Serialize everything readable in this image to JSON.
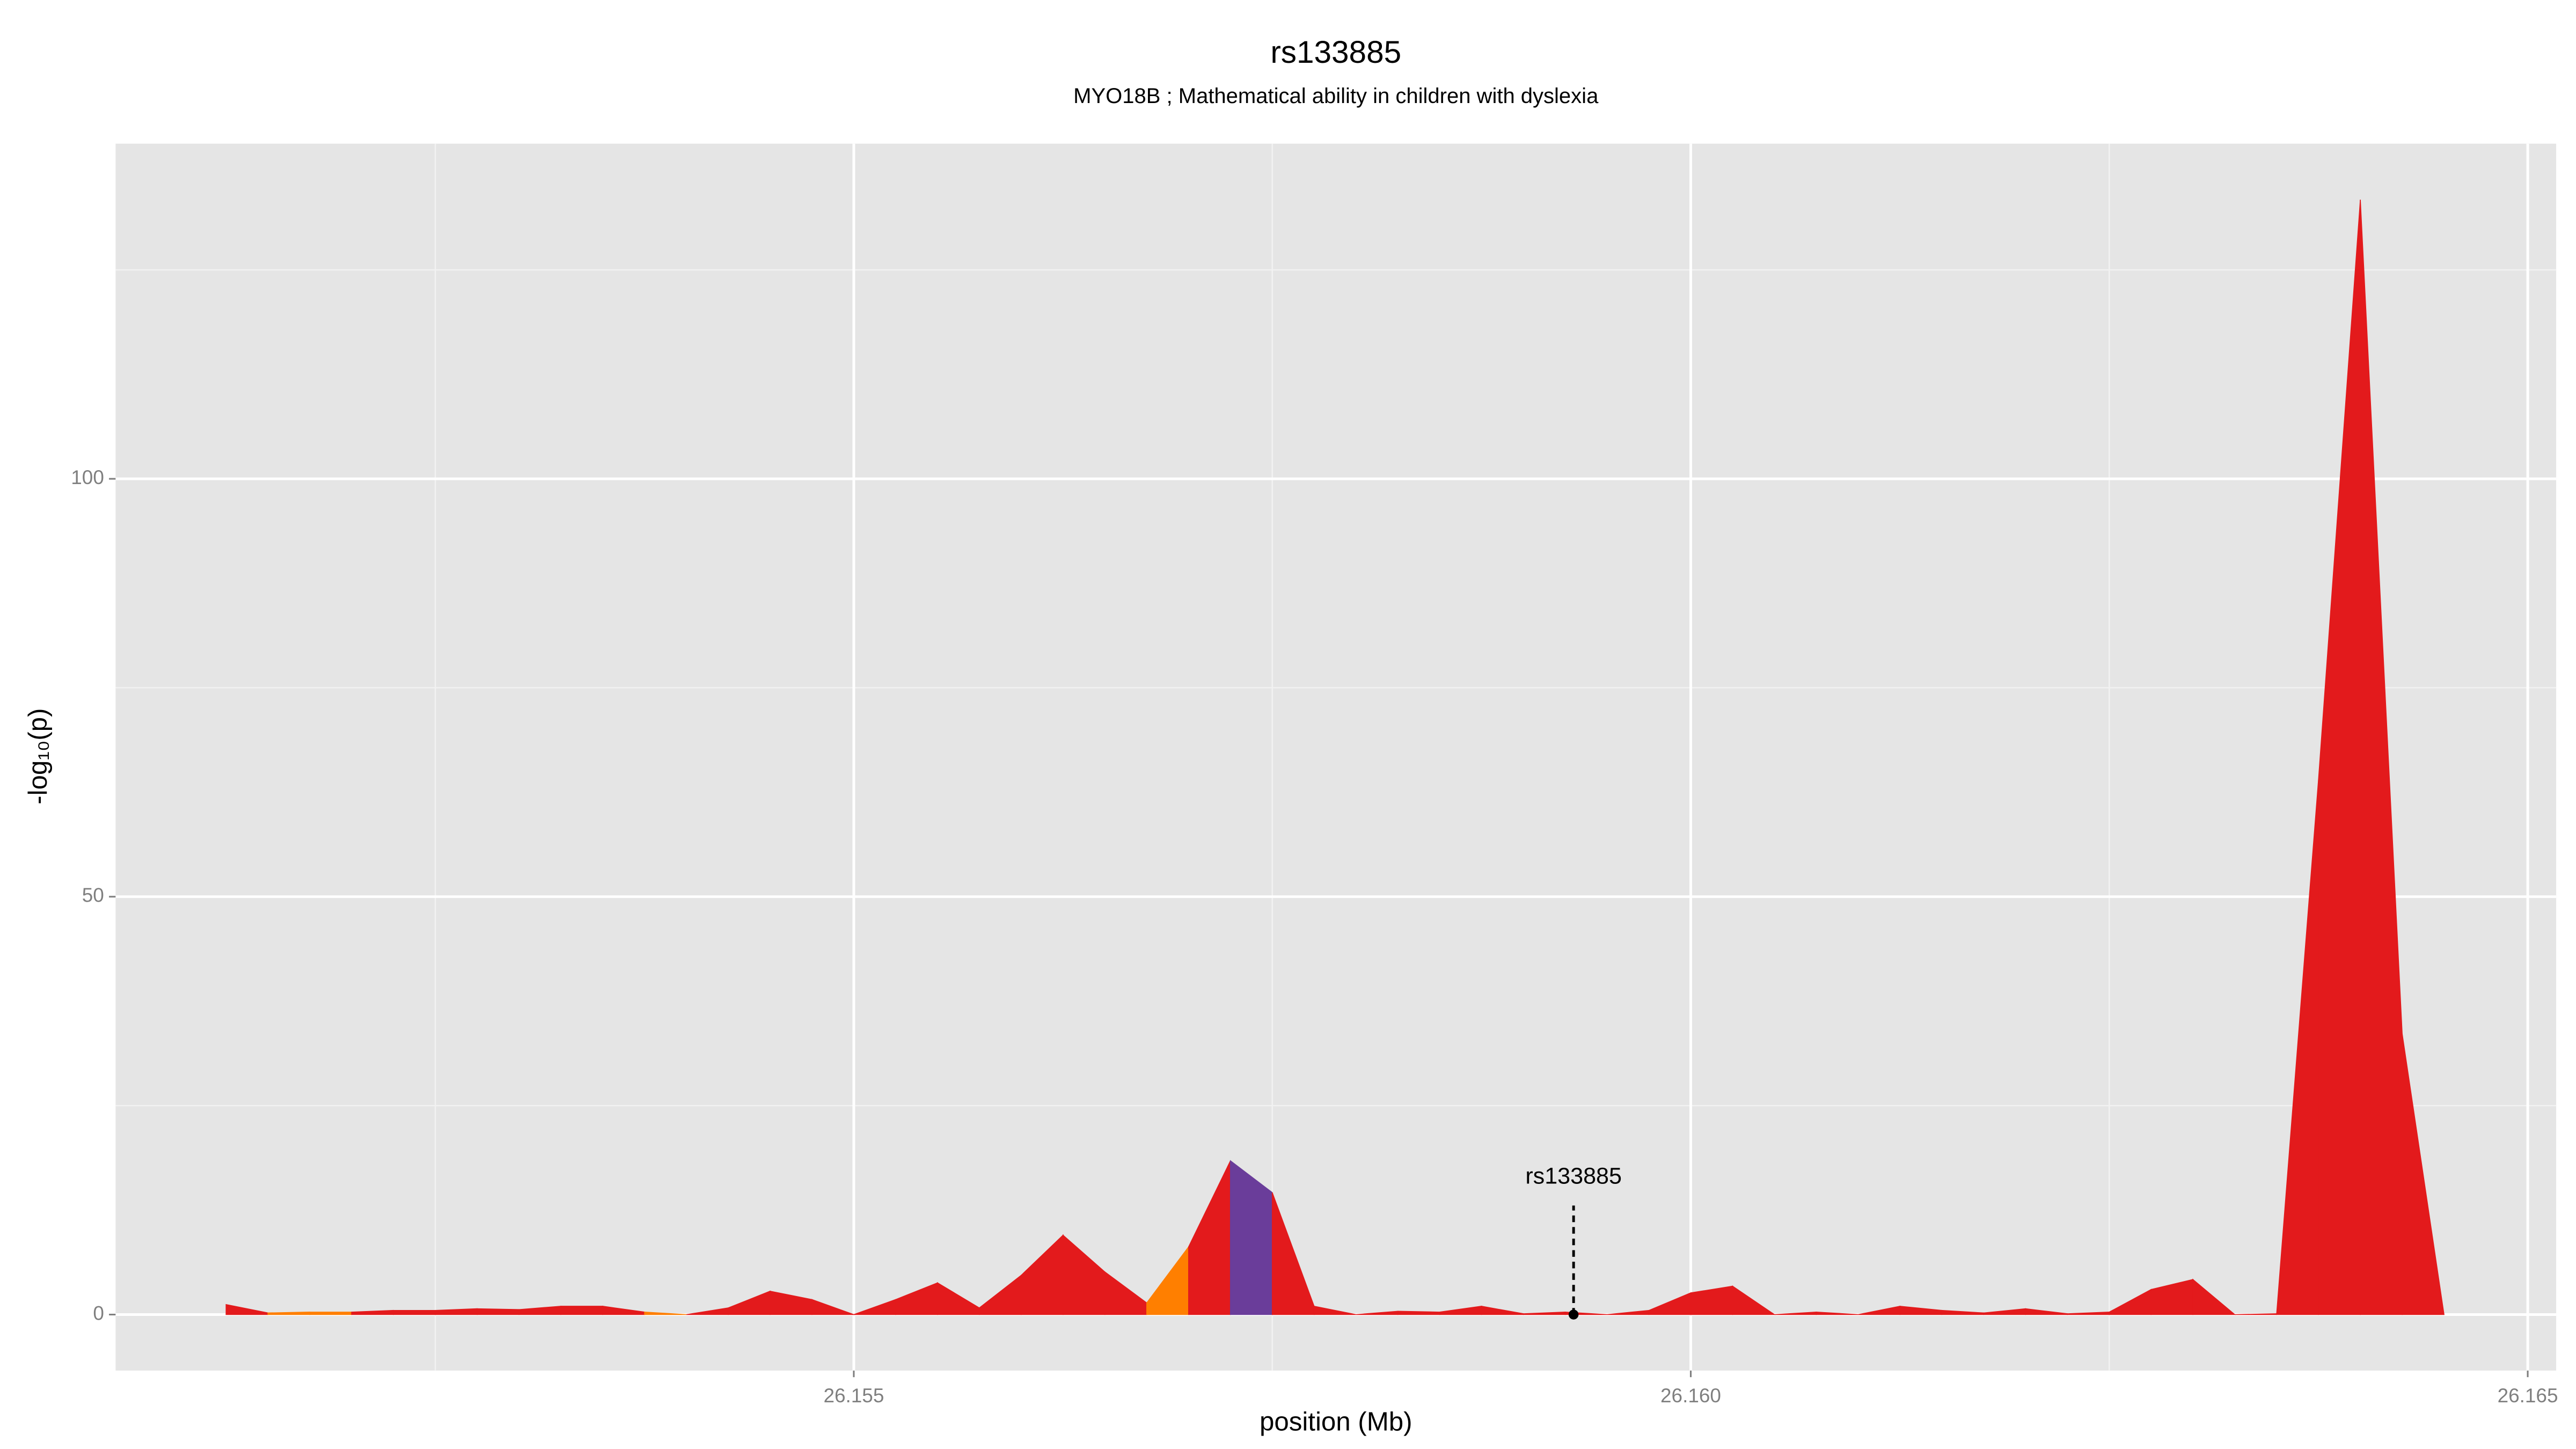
{
  "chart_data": {
    "type": "area",
    "title": "rs133885",
    "subtitle": "MYO18B ; Mathematical ability in children with dyslexia",
    "x_label": "position (Mb)",
    "y_label": "-log₁₀(p)",
    "x": [
      26.15125,
      26.1515,
      26.15175,
      26.152,
      26.15225,
      26.1525,
      26.15275,
      26.153,
      26.15325,
      26.1535,
      26.15375,
      26.154,
      26.15425,
      26.1545,
      26.15475,
      26.155,
      26.15525,
      26.1555,
      26.15575,
      26.156,
      26.15625,
      26.1565,
      26.15675,
      26.157,
      26.15725,
      26.1575,
      26.15775,
      26.158,
      26.15825,
      26.1585,
      26.15875,
      26.159,
      26.15925,
      26.1595,
      26.15975,
      26.16,
      26.16025,
      26.1605,
      26.16075,
      26.161,
      26.16125,
      26.1615,
      26.16175,
      26.162,
      26.16225,
      26.1625,
      26.16275,
      26.163,
      26.16325,
      26.1635,
      26.16375,
      26.164,
      26.16425,
      26.1645
    ],
    "values": [
      1.2,
      0.2,
      0.3,
      0.3,
      0.5,
      0.5,
      0.7,
      0.6,
      1.0,
      1.0,
      0.3,
      0,
      0.8,
      2.8,
      1.8,
      0,
      1.8,
      3.8,
      0.8,
      4.7,
      9.5,
      5.1,
      1.4,
      8.1,
      18.4,
      14.6,
      1.0,
      0,
      0.4,
      0.3,
      1.0,
      0.1,
      0.3,
      0,
      0.5,
      2.6,
      3.4,
      0,
      0.3,
      0,
      1.0,
      0.5,
      0.2,
      0.7,
      0.1,
      0.3,
      3.0,
      4.2,
      0,
      0.1,
      64,
      133.4,
      33.6,
      0
    ],
    "colors": [
      "#e31a1c",
      "#ff7f00",
      "#ff7f00",
      "#e31a1c",
      "#e31a1c",
      "#e31a1c",
      "#e31a1c",
      "#e31a1c",
      "#e31a1c",
      "#e31a1c",
      "#ff7f00",
      "#e31a1c",
      "#e31a1c",
      "#e31a1c",
      "#e31a1c",
      "#e31a1c",
      "#e31a1c",
      "#e31a1c",
      "#e31a1c",
      "#e31a1c",
      "#e31a1c",
      "#e31a1c",
      "#ff7f00",
      "#e31a1c",
      "#6a3d9a",
      "#e31a1c",
      "#e31a1c",
      "#e31a1c",
      "#e31a1c",
      "#e31a1c",
      "#e31a1c",
      "#e31a1c",
      "#e31a1c",
      "#e31a1c",
      "#e31a1c",
      "#e31a1c",
      "#e31a1c",
      "#e31a1c",
      "#e31a1c",
      "#e31a1c",
      "#e31a1c",
      "#e31a1c",
      "#e31a1c",
      "#e31a1c",
      "#e31a1c",
      "#e31a1c",
      "#e31a1c",
      "#e31a1c",
      "#e31a1c",
      "#e31a1c",
      "#e31a1c",
      "#e31a1c",
      "#e31a1c",
      "#e31a1c"
    ],
    "annotation": {
      "text": "rs133885",
      "x": 26.1593,
      "y": 0
    },
    "xlim": [
      26.15059,
      26.16517
    ],
    "ylim": [
      -6.7,
      140.1
    ],
    "xticks": [
      {
        "value": 26.155,
        "label": "26.155"
      },
      {
        "value": 26.16,
        "label": "26.160"
      },
      {
        "value": 26.165,
        "label": "26.165"
      }
    ],
    "x_minor_ticks": [
      26.1525,
      26.1575,
      26.1625
    ],
    "yticks": [
      0,
      50,
      100
    ],
    "y_minor_ticks": [
      25,
      75,
      125
    ],
    "grid": true
  }
}
